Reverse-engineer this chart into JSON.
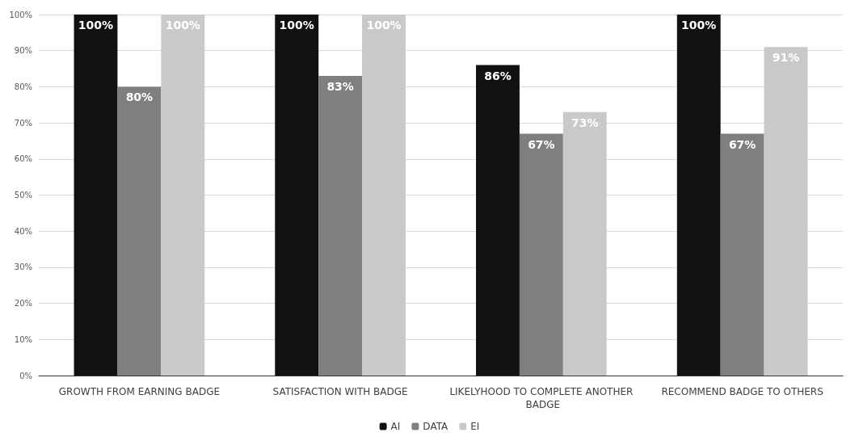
{
  "chart_data": {
    "type": "bar",
    "categories": [
      "GROWTH FROM EARNING BADGE",
      "SATISFACTION WITH BADGE",
      "LIKELYHOOD TO COMPLETE ANOTHER BADGE",
      "RECOMMEND BADGE TO OTHERS"
    ],
    "series": [
      {
        "name": "AI",
        "color": "#111111",
        "values": [
          100,
          100,
          86,
          100
        ],
        "value_labels": [
          "100%",
          "100%",
          "86%",
          "100%"
        ]
      },
      {
        "name": "DATA",
        "color": "#7f7f7f",
        "values": [
          80,
          83,
          67,
          67
        ],
        "value_labels": [
          "80%",
          "83%",
          "67%",
          "67%"
        ]
      },
      {
        "name": "EI",
        "color": "#c9c9c9",
        "values": [
          100,
          100,
          73,
          91
        ],
        "value_labels": [
          "100%",
          "100%",
          "73%",
          "91%"
        ]
      }
    ],
    "ylim": [
      0,
      100
    ],
    "yticks": [
      {
        "value": 0,
        "label": "0%"
      },
      {
        "value": 10,
        "label": "10%"
      },
      {
        "value": 20,
        "label": "20%"
      },
      {
        "value": 30,
        "label": "30%"
      },
      {
        "value": 40,
        "label": "40%"
      },
      {
        "value": 50,
        "label": "50%"
      },
      {
        "value": 60,
        "label": "60%"
      },
      {
        "value": 70,
        "label": "70%"
      },
      {
        "value": 80,
        "label": "80%"
      },
      {
        "value": 90,
        "label": "90%"
      },
      {
        "value": 100,
        "label": "100%"
      }
    ],
    "grid": "y",
    "legend": "bottom"
  }
}
